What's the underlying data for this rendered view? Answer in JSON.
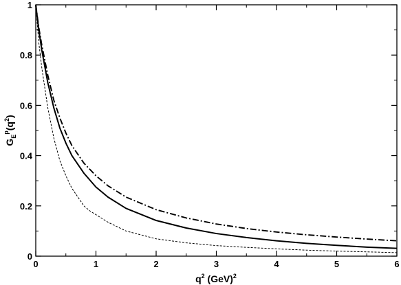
{
  "chart_data": {
    "type": "line",
    "xlabel": {
      "main": "q",
      "sup1": "2",
      "rest": " (GeV)",
      "sup2": "2"
    },
    "ylabel": {
      "g": "G",
      "sub": "E",
      "sup": "p",
      "arg": "(q",
      "argsup": "2",
      "close": ")"
    },
    "xlim": [
      0,
      6
    ],
    "ylim": [
      0,
      1
    ],
    "xticks": [
      "0",
      "1",
      "2",
      "3",
      "4",
      "5",
      "6"
    ],
    "yticks": [
      "0",
      "0.2",
      "0.4",
      "0.6",
      "0.8",
      "1"
    ],
    "grid": false,
    "series": [
      {
        "style": "solid",
        "x": [
          0,
          0.05,
          0.1,
          0.2,
          0.3,
          0.4,
          0.5,
          0.6,
          0.8,
          1.0,
          1.2,
          1.5,
          2.0,
          2.5,
          3.0,
          3.5,
          4.0,
          4.5,
          5.0,
          5.5,
          6.0
        ],
        "y": [
          1.0,
          0.9,
          0.82,
          0.69,
          0.59,
          0.51,
          0.45,
          0.4,
          0.33,
          0.275,
          0.235,
          0.19,
          0.142,
          0.112,
          0.09,
          0.074,
          0.061,
          0.051,
          0.043,
          0.036,
          0.031
        ]
      },
      {
        "style": "dashdot",
        "x": [
          0,
          0.05,
          0.1,
          0.2,
          0.3,
          0.4,
          0.5,
          0.6,
          0.8,
          1.0,
          1.2,
          1.5,
          2.0,
          2.5,
          3.0,
          3.5,
          4.0,
          4.5,
          5.0,
          5.5,
          6.0
        ],
        "y": [
          1.0,
          0.91,
          0.84,
          0.72,
          0.62,
          0.55,
          0.49,
          0.44,
          0.37,
          0.32,
          0.28,
          0.235,
          0.185,
          0.152,
          0.128,
          0.11,
          0.096,
          0.085,
          0.076,
          0.068,
          0.061
        ]
      },
      {
        "style": "dashed",
        "x": [
          0,
          0.05,
          0.1,
          0.2,
          0.3,
          0.4,
          0.5,
          0.6,
          0.7,
          0.8,
          0.9,
          1.0,
          1.2,
          1.5,
          2.0,
          2.5,
          3.0,
          3.5,
          4.0,
          4.5,
          5.0,
          5.5,
          6.0
        ],
        "y": [
          1.0,
          0.85,
          0.75,
          0.59,
          0.47,
          0.38,
          0.32,
          0.27,
          0.235,
          0.2,
          0.18,
          0.165,
          0.135,
          0.1,
          0.069,
          0.053,
          0.042,
          0.035,
          0.029,
          0.024,
          0.02,
          0.017,
          0.014
        ]
      }
    ]
  }
}
